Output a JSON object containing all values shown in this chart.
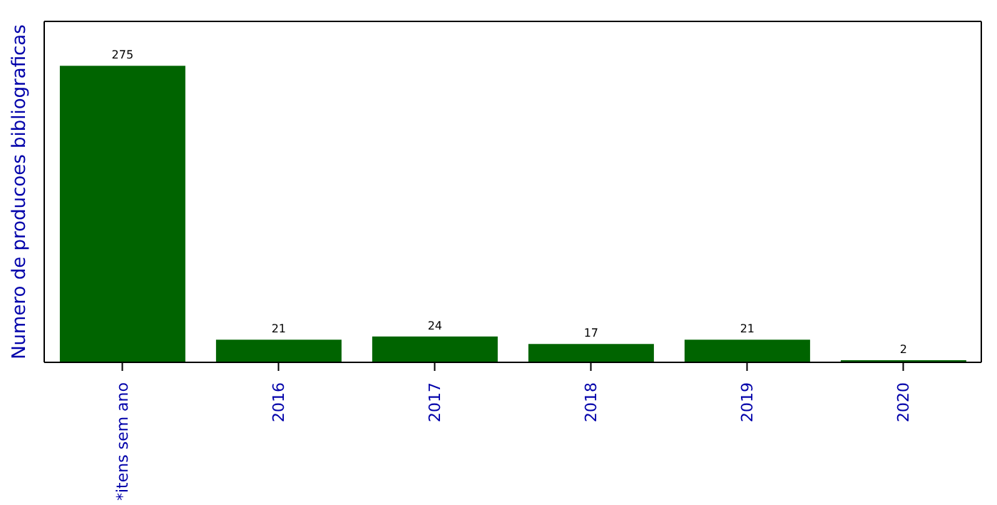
{
  "chart_data": {
    "type": "bar",
    "ylabel": "Numero de producoes bibliograficas",
    "categories": [
      "*itens sem ano",
      "2016",
      "2017",
      "2018",
      "2019",
      "2020"
    ],
    "values": [
      275,
      21,
      24,
      17,
      21,
      2
    ],
    "color": "#006400",
    "data_labels": true
  }
}
